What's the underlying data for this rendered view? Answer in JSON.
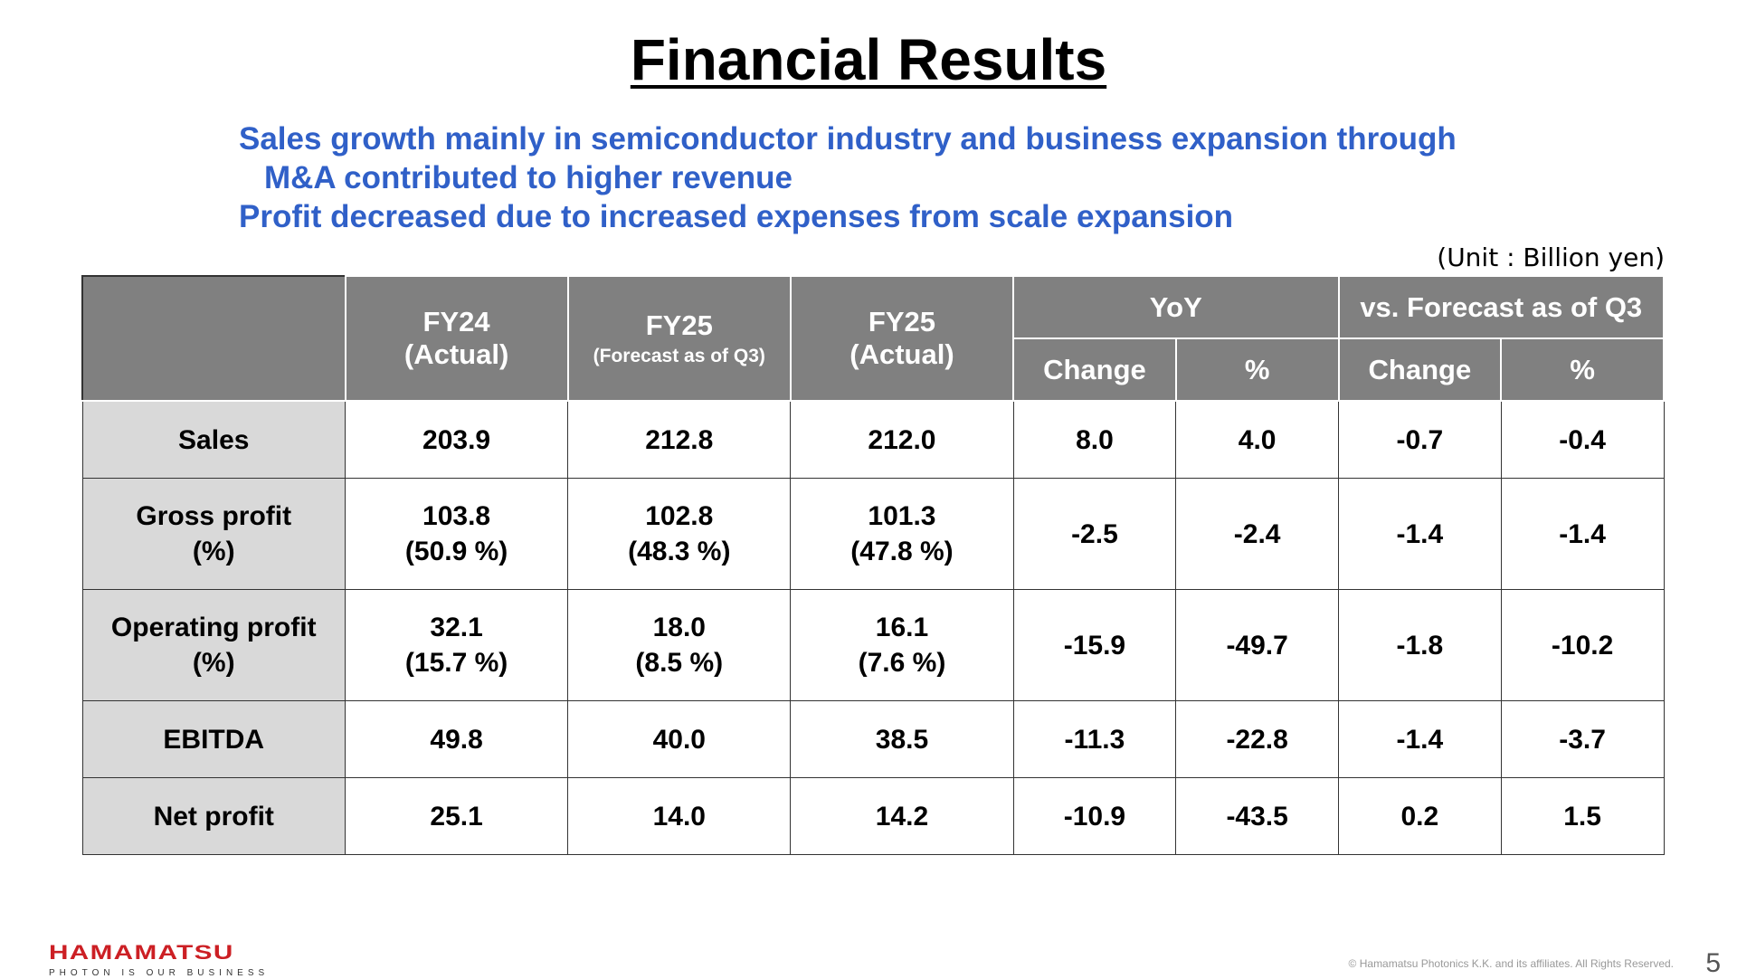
{
  "title": "Financial Results",
  "summary": {
    "line1": "Sales growth mainly in semiconductor industry and business expansion through",
    "line2": "M&A contributed to higher revenue",
    "line3": "Profit decreased due to increased expenses from scale expansion"
  },
  "unit_note": "(Unit : Billion yen)",
  "table": {
    "headers": {
      "fy24_line1": "FY24",
      "fy24_line2": "(Actual)",
      "fy25f_line1": "FY25",
      "fy25f_line2": "(Forecast as of Q3)",
      "fy25a_line1": "FY25",
      "fy25a_line2": "(Actual)",
      "yoy": "YoY",
      "vs_forecast": "vs. Forecast as of Q3",
      "yoy_change": "Change",
      "yoy_pct": "%",
      "vsf_change": "Change",
      "vsf_pct": "%"
    },
    "rows": [
      {
        "label": "Sales",
        "label_sub": "",
        "fy24": "203.9",
        "fy24_sub": "",
        "fy25_forecast": "212.8",
        "fy25_forecast_sub": "",
        "fy25_actual": "212.0",
        "fy25_actual_sub": "",
        "yoy_change": "8.0",
        "yoy_pct": "4.0",
        "vsf_change": "-0.7",
        "vsf_pct": "-0.4"
      },
      {
        "label": "Gross profit",
        "label_sub": "(%)",
        "fy24": "103.8",
        "fy24_sub": "(50.9 %)",
        "fy25_forecast": "102.8",
        "fy25_forecast_sub": "(48.3 %)",
        "fy25_actual": "101.3",
        "fy25_actual_sub": "(47.8 %)",
        "yoy_change": "-2.5",
        "yoy_pct": "-2.4",
        "vsf_change": "-1.4",
        "vsf_pct": "-1.4"
      },
      {
        "label": "Operating profit",
        "label_sub": "(%)",
        "fy24": "32.1",
        "fy24_sub": "(15.7 %)",
        "fy25_forecast": "18.0",
        "fy25_forecast_sub": "(8.5 %)",
        "fy25_actual": "16.1",
        "fy25_actual_sub": "(7.6 %)",
        "yoy_change": "-15.9",
        "yoy_pct": "-49.7",
        "vsf_change": "-1.8",
        "vsf_pct": "-10.2"
      },
      {
        "label": "EBITDA",
        "label_sub": "",
        "fy24": "49.8",
        "fy24_sub": "",
        "fy25_forecast": "40.0",
        "fy25_forecast_sub": "",
        "fy25_actual": "38.5",
        "fy25_actual_sub": "",
        "yoy_change": "-11.3",
        "yoy_pct": "-22.8",
        "vsf_change": "-1.4",
        "vsf_pct": "-3.7"
      },
      {
        "label": "Net profit",
        "label_sub": "",
        "fy24": "25.1",
        "fy24_sub": "",
        "fy25_forecast": "14.0",
        "fy25_forecast_sub": "",
        "fy25_actual": "14.2",
        "fy25_actual_sub": "",
        "yoy_change": "-10.9",
        "yoy_pct": "-43.5",
        "vsf_change": "0.2",
        "vsf_pct": "1.5"
      }
    ]
  },
  "footer": {
    "logo_text": "HAMAMATSU",
    "logo_tagline": "PHOTON IS OUR BUSINESS",
    "copyright": "© Hamamatsu Photonics K.K. and its affiliates. All Rights Reserved.",
    "page_number": "5"
  },
  "colors": {
    "summary_text": "#3060c8",
    "header_bg": "#808080",
    "label_bg": "#d9d9d9",
    "logo_red": "#cc1f24"
  }
}
